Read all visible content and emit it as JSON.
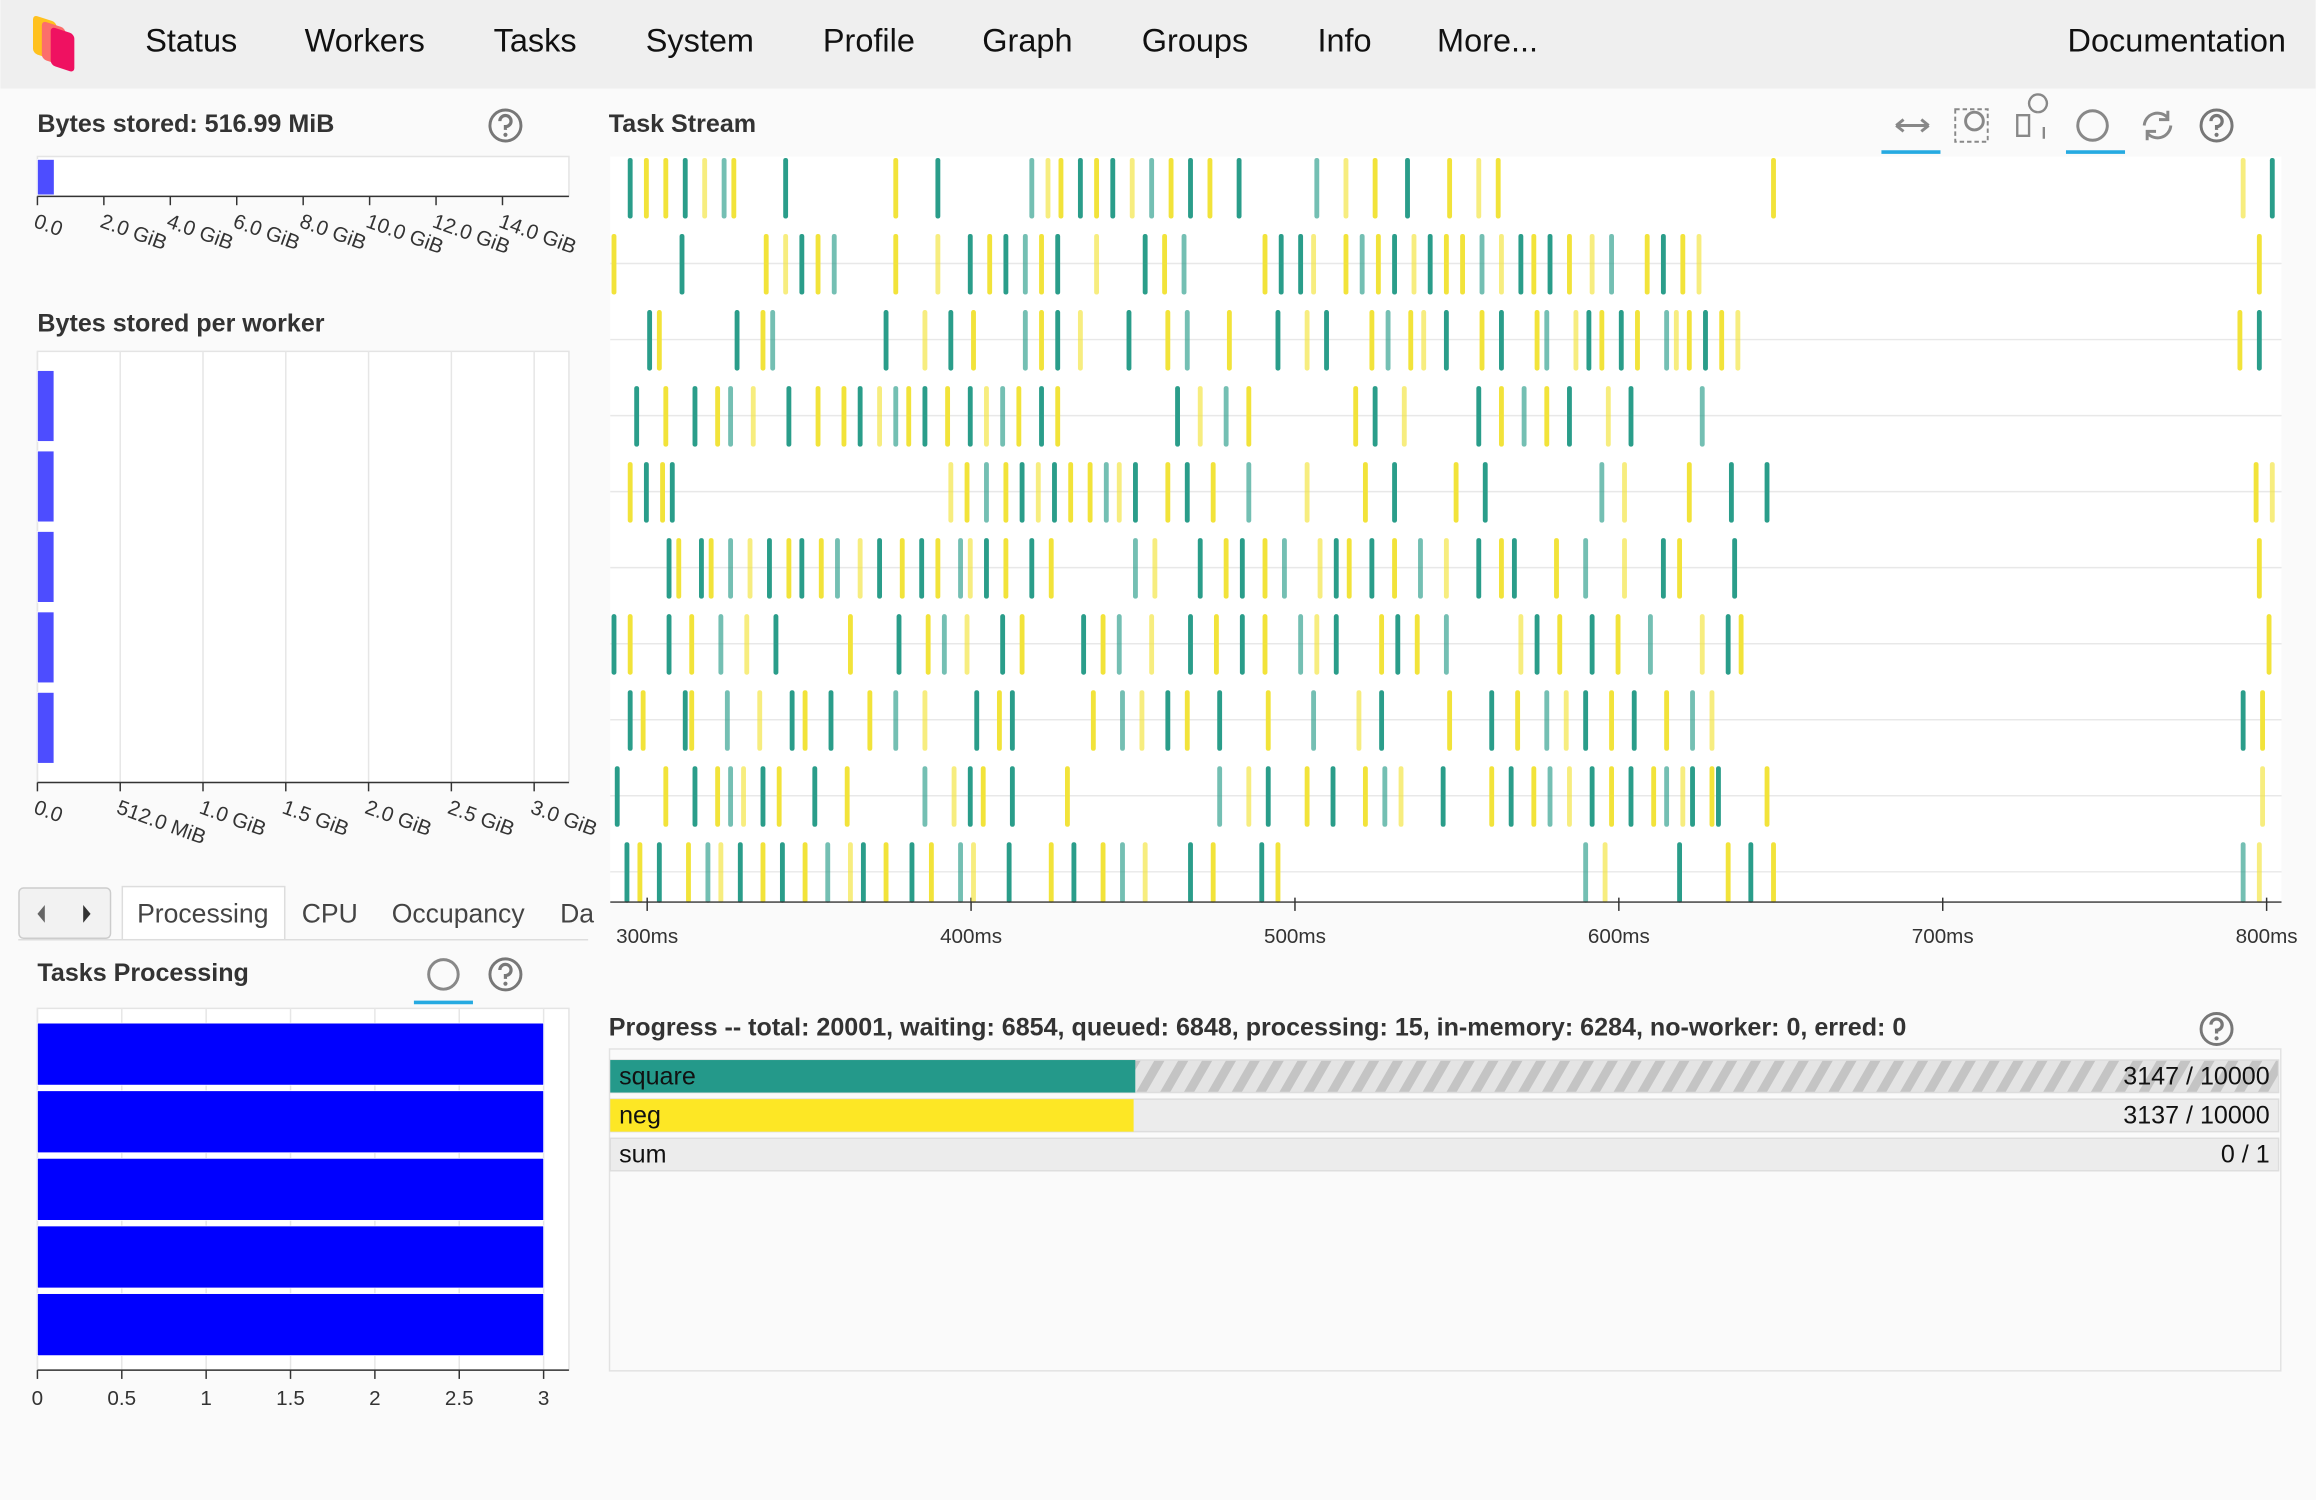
{
  "nav": [
    "Status",
    "Workers",
    "Tasks",
    "System",
    "Profile",
    "Graph",
    "Groups",
    "Info",
    "More...",
    "Documentation"
  ],
  "bytes_stored": {
    "title": "Bytes stored: 516.99 MiB",
    "value": 0.505,
    "color": "#4d4dff",
    "xlim": [
      0,
      16
    ],
    "xticks": [
      {
        "value": 0,
        "label": "0.0"
      },
      {
        "value": 2,
        "label": "2.0 GiB"
      },
      {
        "value": 4,
        "label": "4.0 GiB"
      },
      {
        "value": 6,
        "label": "6.0 GiB"
      },
      {
        "value": 8,
        "label": "8.0 GiB"
      },
      {
        "value": 10,
        "label": "10.0 GiB"
      },
      {
        "value": 12,
        "label": "12.0 GiB"
      },
      {
        "value": 14,
        "label": "14.0 GiB"
      }
    ]
  },
  "bytes_per_worker": {
    "title": "Bytes stored per worker",
    "values": [
      0.1,
      0.1,
      0.1,
      0.1,
      0.1
    ],
    "color": "#4d4dff",
    "xlim": [
      0,
      3.21
    ],
    "grid": true,
    "xticks": [
      {
        "value": 0,
        "label": "0.0"
      },
      {
        "value": 0.5,
        "label": "512.0 MiB"
      },
      {
        "value": 1,
        "label": "1.0 GiB"
      },
      {
        "value": 1.5,
        "label": "1.5 GiB"
      },
      {
        "value": 2,
        "label": "2.0 GiB"
      },
      {
        "value": 2.5,
        "label": "2.5 GiB"
      },
      {
        "value": 3,
        "label": "3.0 GiB"
      }
    ]
  },
  "tabs": [
    "Processing",
    "CPU",
    "Occupancy",
    "Da"
  ],
  "tasks_processing": {
    "title": "Tasks Processing",
    "values": [
      3,
      3,
      3,
      3,
      3
    ],
    "color": "#0000ff",
    "xlim": [
      0,
      3.15
    ],
    "grid": true,
    "xticks": [
      0,
      0.5,
      1,
      1.5,
      2,
      2.5,
      3
    ]
  },
  "task_stream": {
    "title": "Task Stream",
    "xlim": [
      288.6,
      804.6
    ],
    "xticks": [
      {
        "value": 300,
        "label": "300ms"
      },
      {
        "value": 400,
        "label": "400ms"
      },
      {
        "value": 500,
        "label": "500ms"
      },
      {
        "value": 600,
        "label": "600ms"
      },
      {
        "value": 700,
        "label": "700ms"
      },
      {
        "value": 800,
        "label": "800ms"
      }
    ],
    "series": [
      {
        "color": "#2a9d8a",
        "duration": 1.5,
        "rows": [
          [
            294,
            311,
            323,
            342,
            389,
            418,
            433,
            443,
            455,
            467,
            482,
            506,
            534,
            801
          ],
          [
            310,
            347,
            357,
            399,
            410,
            416,
            426,
            453,
            465,
            495,
            501,
            520,
            530,
            541,
            557,
            569,
            578,
            597,
            613
          ],
          [
            300,
            327,
            338,
            373,
            393,
            416,
            426,
            448,
            466,
            494,
            509,
            528,
            546,
            563,
            577,
            590,
            600,
            614,
            626,
            797
          ],
          [
            296,
            314,
            325,
            343,
            365,
            376,
            385,
            399,
            409,
            421,
            463,
            478,
            524,
            556,
            570,
            584,
            603,
            625
          ],
          [
            299,
            307,
            404,
            415,
            425,
            441,
            450,
            466,
            485,
            530,
            558,
            594,
            634,
            645
          ],
          [
            306,
            316,
            325,
            337,
            347,
            358,
            371,
            384,
            396,
            404,
            418,
            450,
            470,
            483,
            496,
            512,
            523,
            538,
            556,
            567,
            589,
            613,
            635
          ],
          [
            289,
            306,
            322,
            339,
            377,
            391,
            409,
            434,
            445,
            467,
            483,
            501,
            512,
            531,
            546,
            574,
            591,
            609,
            633
          ],
          [
            294,
            311,
            324,
            344,
            356,
            376,
            401,
            412,
            446,
            460,
            476,
            505,
            526,
            560,
            577,
            589,
            604,
            622,
            792
          ],
          [
            290,
            314,
            325,
            335,
            351,
            385,
            399,
            412,
            476,
            491,
            511,
            527,
            545,
            566,
            578,
            591,
            603,
            614,
            622,
            630
          ],
          [
            293,
            303,
            318,
            328,
            341,
            355,
            366,
            381,
            396,
            411,
            431,
            446,
            467,
            489,
            589,
            618,
            640,
            792
          ]
        ]
      },
      {
        "color": "#f2e33a",
        "duration": 1.5,
        "rows": [
          [
            299,
            305,
            317,
            326,
            376,
            423,
            427,
            438,
            449,
            461,
            473,
            515,
            524,
            547,
            556,
            562,
            647,
            792
          ],
          [
            289,
            336,
            342,
            352,
            376,
            389,
            405,
            421,
            438,
            459,
            490,
            505,
            515,
            525,
            536,
            546,
            551,
            563,
            573,
            584,
            591,
            608,
            619,
            624,
            797
          ],
          [
            303,
            335,
            385,
            400,
            421,
            433,
            460,
            479,
            503,
            523,
            535,
            539,
            557,
            574,
            586,
            594,
            605,
            617,
            621,
            631,
            636,
            791
          ],
          [
            305,
            321,
            332,
            352,
            360,
            371,
            380,
            392,
            404,
            414,
            426,
            470,
            485,
            518,
            533,
            563,
            577,
            596
          ],
          [
            294,
            304,
            393,
            398,
            410,
            420,
            430,
            436,
            445,
            460,
            474,
            503,
            521,
            549,
            601,
            621,
            796,
            801
          ],
          [
            309,
            319,
            331,
            343,
            353,
            365,
            378,
            389,
            399,
            410,
            424,
            456,
            478,
            490,
            507,
            516,
            530,
            546,
            563,
            580,
            601,
            618,
            797
          ],
          [
            294,
            313,
            330,
            362,
            386,
            398,
            415,
            440,
            455,
            475,
            490,
            506,
            526,
            537,
            569,
            581,
            599,
            625,
            637,
            800
          ],
          [
            298,
            313,
            334,
            348,
            368,
            385,
            408,
            437,
            452,
            466,
            491,
            519,
            547,
            568,
            583,
            597,
            614,
            628,
            798
          ],
          [
            305,
            321,
            329,
            340,
            361,
            394,
            403,
            429,
            485,
            503,
            521,
            532,
            560,
            573,
            584,
            597,
            610,
            619,
            628,
            645,
            798
          ],
          [
            297,
            312,
            322,
            335,
            348,
            362,
            373,
            387,
            400,
            424,
            440,
            453,
            474,
            494,
            595,
            633,
            647,
            797
          ]
        ]
      }
    ]
  },
  "progress": {
    "title": "Progress -- total: 20001, waiting: 6854, queued: 6848, processing: 15, in-memory: 6284, no-worker: 0, erred: 0",
    "rows": [
      {
        "name": "square",
        "done": 3147,
        "total": 10000,
        "label": "3147 / 10000",
        "color": "#24998a",
        "hatched": true
      },
      {
        "name": "neg",
        "done": 3137,
        "total": 10000,
        "label": "3137 / 10000",
        "color": "#fde725",
        "hatched": false
      },
      {
        "name": "sum",
        "done": 0,
        "total": 1,
        "label": "0 / 1",
        "color": "#9c9c9c",
        "hatched": false
      }
    ]
  }
}
